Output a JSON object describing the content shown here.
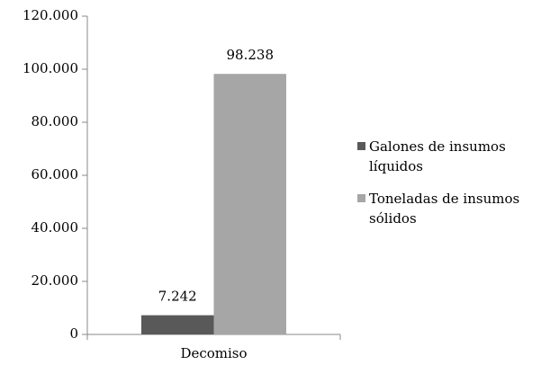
{
  "chart_data": {
    "type": "bar",
    "categories": [
      "Decomiso"
    ],
    "series": [
      {
        "name": "Galones de insumos líquidos",
        "color": "#595959",
        "values": [
          7242
        ],
        "value_labels": [
          "7.242"
        ]
      },
      {
        "name": "Toneladas de insumos sólidos",
        "color": "#a6a6a6",
        "values": [
          98238
        ],
        "value_labels": [
          "98.238"
        ]
      }
    ],
    "ylim": [
      0,
      120000
    ],
    "yticks": [
      {
        "value": 0,
        "label": "0"
      },
      {
        "value": 20000,
        "label": "20.000"
      },
      {
        "value": 40000,
        "label": "40.000"
      },
      {
        "value": 60000,
        "label": "60.000"
      },
      {
        "value": 80000,
        "label": "80.000"
      },
      {
        "value": 100000,
        "label": "100.000"
      },
      {
        "value": 120000,
        "label": "120.000"
      }
    ],
    "legend": "right"
  }
}
